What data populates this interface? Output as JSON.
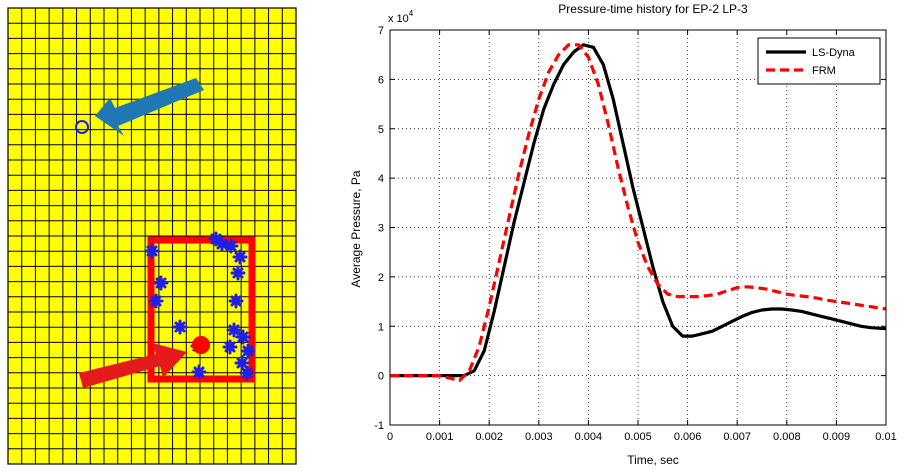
{
  "mesh_panel": {
    "fill_color": "#ffff00",
    "grid_color": "#000000",
    "rows": 30,
    "cols": 21,
    "box_color": "#ff0000",
    "marker_color": "#1f1fe6",
    "arrow_blue_color": "#1f78b4",
    "arrow_red_color": "#e41a1c",
    "icons": [
      "blue-arrow-icon",
      "red-arrow-icon",
      "circle-marker-icon",
      "star-marker-icon",
      "red-dot-icon"
    ]
  },
  "chart_data": {
    "type": "line",
    "title": "Pressure-time history for EP-2 LP-3",
    "xlabel": "Time, sec",
    "ylabel": "Average Pressure, Pa",
    "exponent_label": "x 10",
    "exponent_power": "4",
    "xlim": [
      0,
      0.01
    ],
    "ylim": [
      -1,
      7
    ],
    "x_ticks": [
      "0",
      "0.001",
      "0.002",
      "0.003",
      "0.004",
      "0.005",
      "0.006",
      "0.007",
      "0.008",
      "0.009",
      "0.01"
    ],
    "y_ticks": [
      "-1",
      "0",
      "1",
      "2",
      "3",
      "4",
      "5",
      "6",
      "7"
    ],
    "grid": true,
    "legend_position": "top-right",
    "y_scale_note": "values in units of 10^4 Pa",
    "series": [
      {
        "name": "LS-Dyna",
        "color": "#000000",
        "style": "solid",
        "x": [
          0,
          0.0005,
          0.001,
          0.0015,
          0.0017,
          0.0019,
          0.0021,
          0.0023,
          0.0025,
          0.0027,
          0.0029,
          0.0031,
          0.0033,
          0.0035,
          0.0037,
          0.0039,
          0.0041,
          0.0043,
          0.0045,
          0.0047,
          0.0049,
          0.0051,
          0.0053,
          0.0055,
          0.0057,
          0.0059,
          0.0061,
          0.0063,
          0.0065,
          0.0067,
          0.0069,
          0.0071,
          0.0073,
          0.0075,
          0.0077,
          0.0079,
          0.0081,
          0.0083,
          0.0085,
          0.0087,
          0.0089,
          0.0091,
          0.0093,
          0.0095,
          0.0097,
          0.01
        ],
        "y": [
          0,
          0,
          0,
          0,
          0.1,
          0.5,
          1.3,
          2.2,
          3.1,
          3.9,
          4.7,
          5.4,
          5.9,
          6.3,
          6.55,
          6.7,
          6.65,
          6.3,
          5.6,
          4.7,
          3.8,
          3.0,
          2.2,
          1.5,
          1.0,
          0.8,
          0.8,
          0.85,
          0.9,
          1.0,
          1.1,
          1.2,
          1.28,
          1.33,
          1.35,
          1.35,
          1.33,
          1.3,
          1.25,
          1.2,
          1.15,
          1.1,
          1.05,
          1.0,
          0.97,
          0.95
        ]
      },
      {
        "name": "FRM",
        "color": "#ff0000",
        "style": "dashed",
        "x": [
          0,
          0.0005,
          0.001,
          0.0012,
          0.0014,
          0.0016,
          0.0018,
          0.002,
          0.0022,
          0.0024,
          0.0026,
          0.0028,
          0.003,
          0.0032,
          0.0034,
          0.0036,
          0.0038,
          0.004,
          0.0042,
          0.0044,
          0.0046,
          0.0048,
          0.005,
          0.0052,
          0.0054,
          0.0056,
          0.0058,
          0.006,
          0.0062,
          0.0064,
          0.0066,
          0.0068,
          0.007,
          0.0072,
          0.0074,
          0.0076,
          0.0078,
          0.008,
          0.0082,
          0.0084,
          0.0086,
          0.0088,
          0.009,
          0.0092,
          0.0094,
          0.0096,
          0.0098,
          0.01
        ],
        "y": [
          0,
          0,
          0,
          -0.05,
          -0.1,
          0.1,
          0.6,
          1.4,
          2.3,
          3.2,
          4.1,
          4.9,
          5.6,
          6.15,
          6.5,
          6.7,
          6.7,
          6.45,
          5.9,
          5.1,
          4.2,
          3.4,
          2.7,
          2.2,
          1.85,
          1.65,
          1.6,
          1.6,
          1.6,
          1.62,
          1.65,
          1.72,
          1.78,
          1.8,
          1.78,
          1.75,
          1.7,
          1.65,
          1.62,
          1.6,
          1.57,
          1.53,
          1.5,
          1.47,
          1.44,
          1.41,
          1.38,
          1.35
        ]
      }
    ]
  }
}
